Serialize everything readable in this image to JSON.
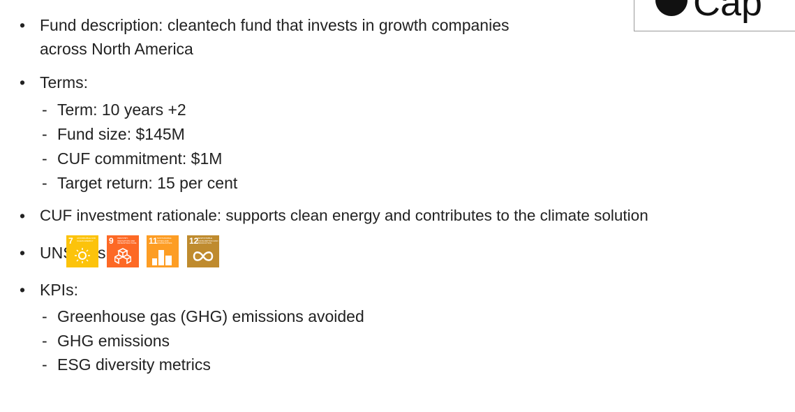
{
  "logo": {
    "text": "Cap"
  },
  "bullets": [
    {
      "text": "Fund description: cleantech fund that invests in growth companies",
      "continuation": "across North America"
    },
    {
      "text": "Terms:",
      "items": [
        "Term: 10 years +2",
        "Fund size: $145M",
        "CUF commitment: $1M",
        "Target return: 15 per cent"
      ]
    },
    {
      "text": "CUF investment rationale: supports clean energy and contributes to the climate solution"
    },
    {
      "text": "UNSDGs:",
      "icons": [
        {
          "number": "7",
          "label": "AFFORDABLE AND CLEAN ENERGY"
        },
        {
          "number": "9",
          "label": "INDUSTRY, INNOVATION AND INFRASTRUCTURE"
        },
        {
          "number": "11",
          "label": "SUSTAINABLE CITIES AND COMMUNITIES"
        },
        {
          "number": "12",
          "label": "RESPONSIBLE CONSUMPTION AND PRODUCTION"
        }
      ]
    },
    {
      "text": "KPIs:",
      "items": [
        "Greenhouse gas (GHG) emissions avoided",
        "GHG emissions",
        "ESG diversity metrics"
      ]
    }
  ]
}
